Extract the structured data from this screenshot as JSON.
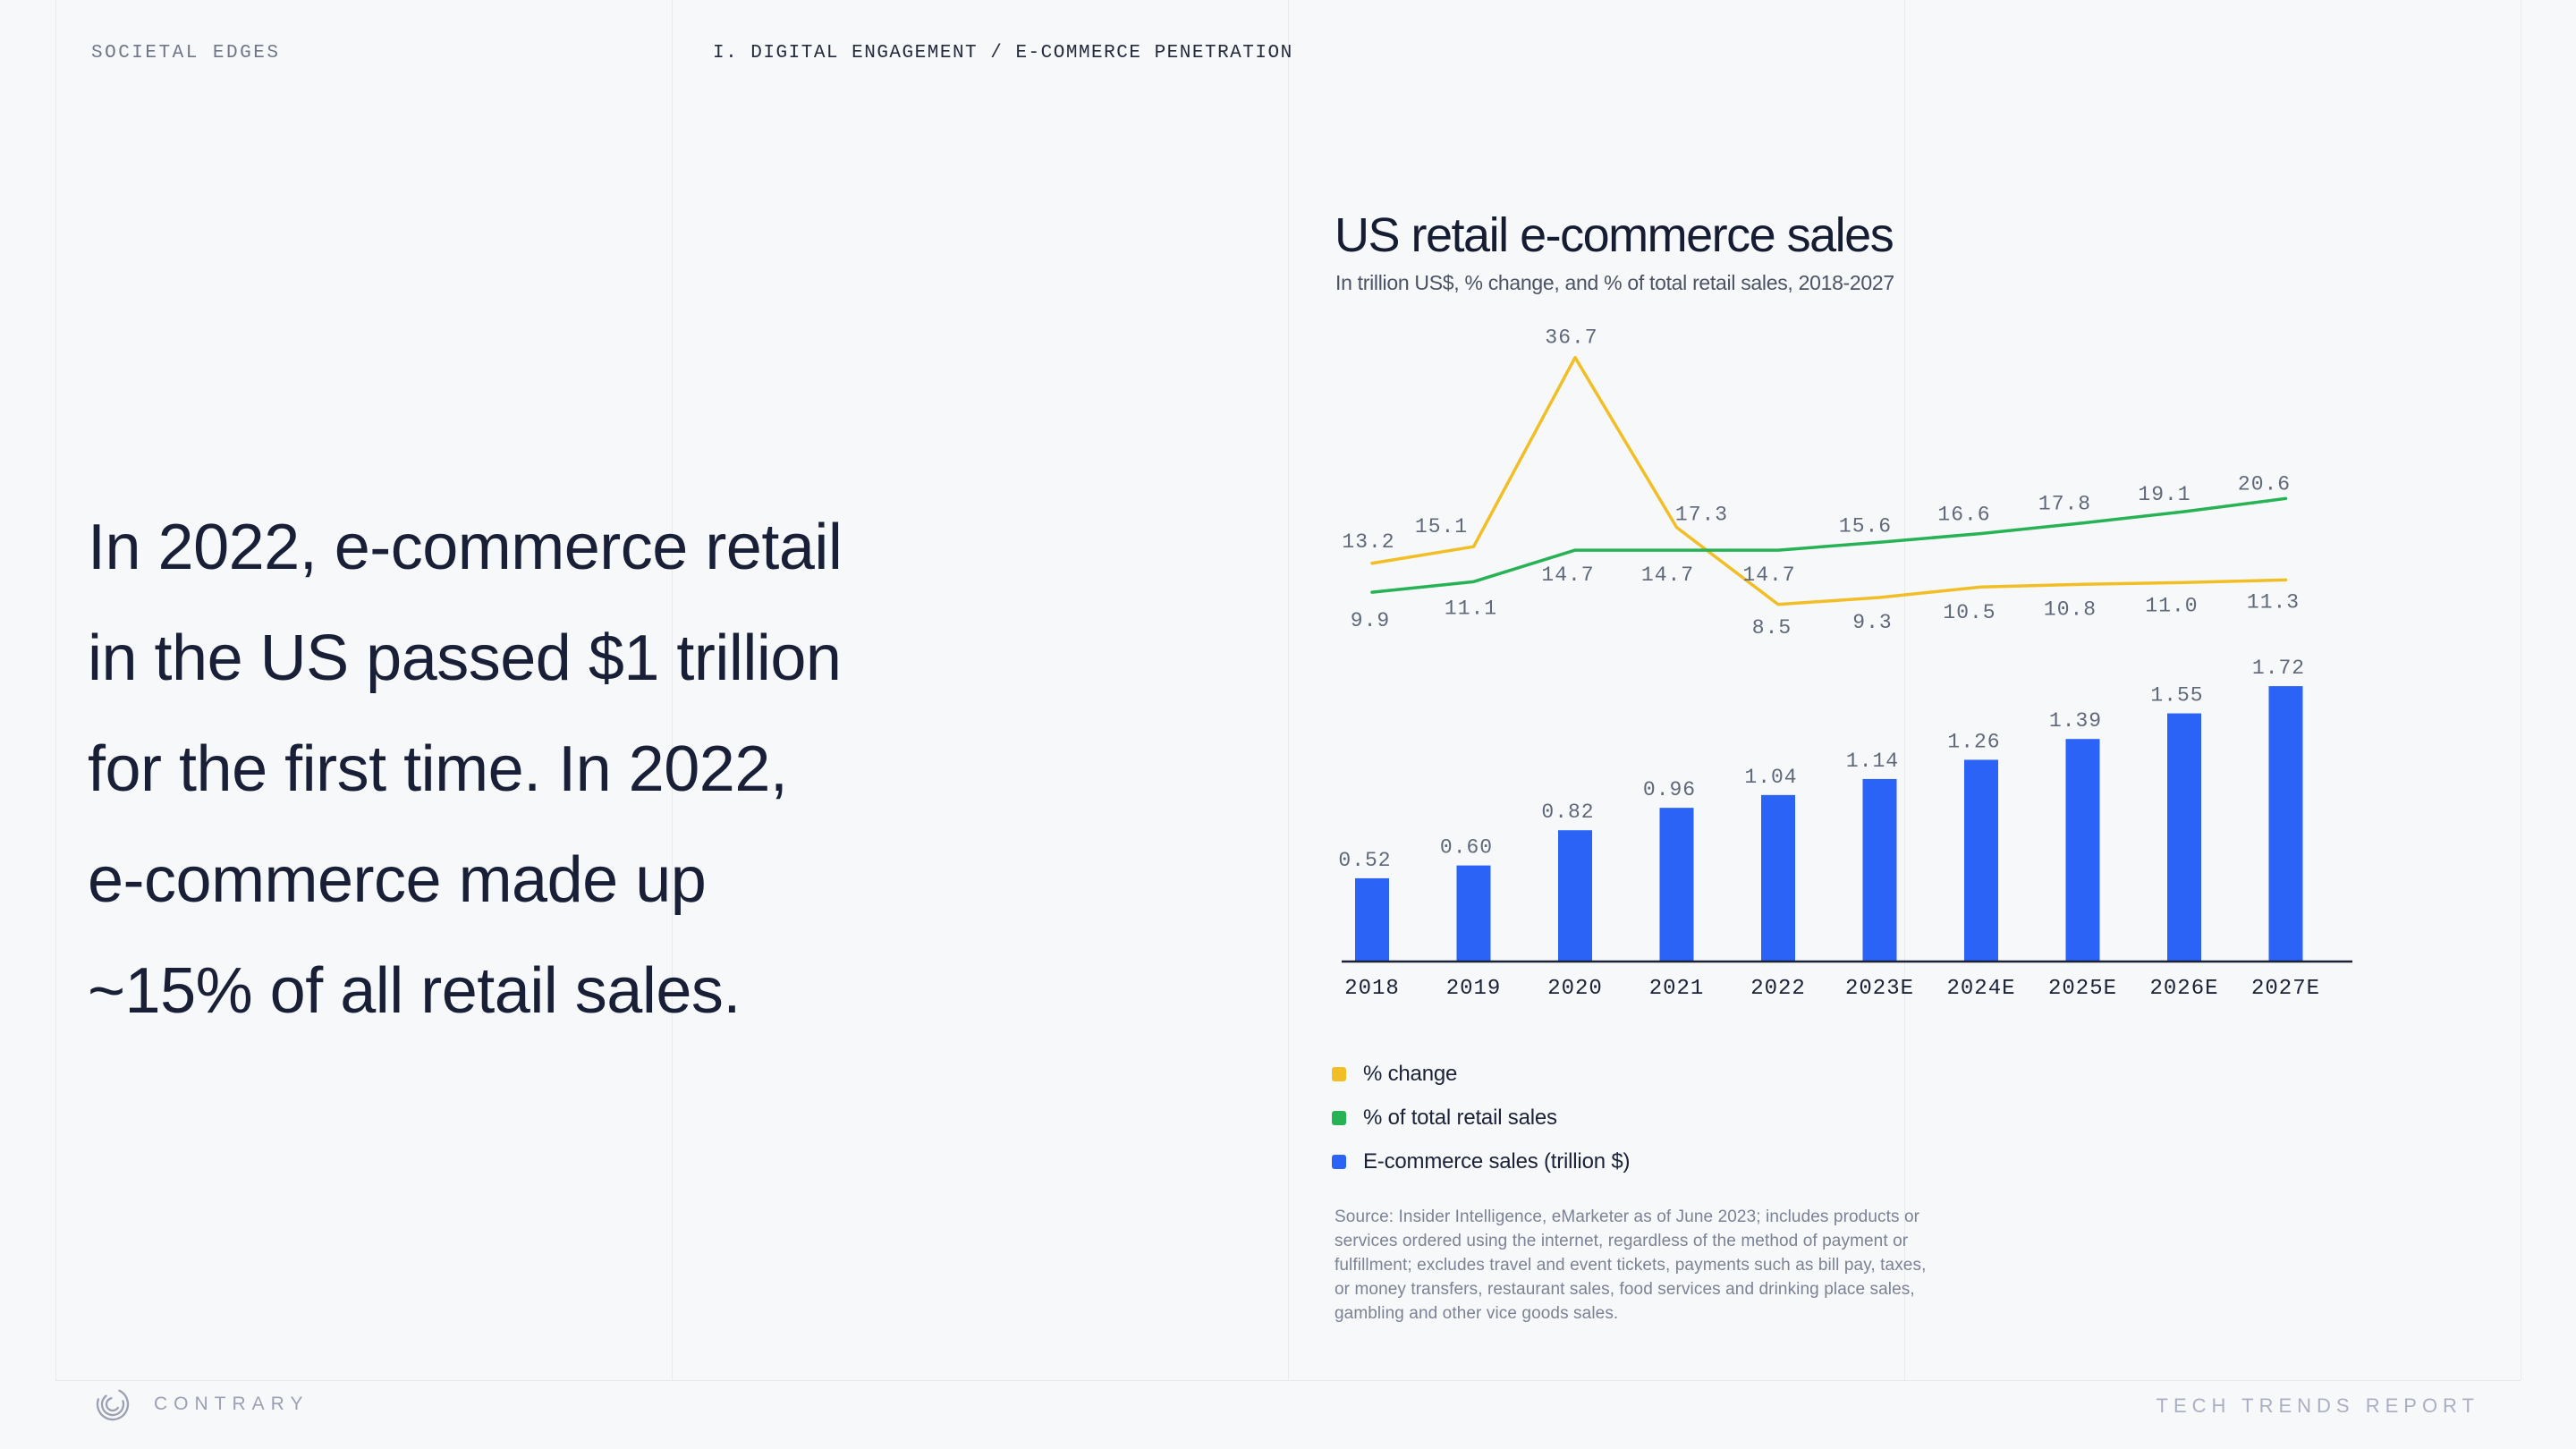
{
  "header": {
    "section_label": "SOCIETAL EDGES",
    "breadcrumb": "I. DIGITAL ENGAGEMENT / E-COMMERCE PENETRATION"
  },
  "statement": {
    "lines": [
      "In 2022, e-commerce retail",
      "in the US passed $1 trillion",
      "for the first time. In 2022,",
      "e-commerce made up",
      "~15% of all retail sales."
    ]
  },
  "chart": {
    "title": "US retail e-commerce sales",
    "subtitle": "In trillion US$, % change, and % of total retail sales, 2018-2027"
  },
  "chart_data": {
    "type": "combo",
    "title": "US retail e-commerce sales",
    "subtitle": "In trillion US$, % change, and % of total retail sales, 2018-2027",
    "categories": [
      "2018",
      "2019",
      "2020",
      "2021",
      "2022",
      "2023E",
      "2024E",
      "2025E",
      "2026E",
      "2027E"
    ],
    "series": [
      {
        "name": "% change",
        "type": "line",
        "color": "#F2BE25",
        "values": [
          13.2,
          15.1,
          36.7,
          17.3,
          8.5,
          9.3,
          10.5,
          10.8,
          11.0,
          11.3
        ],
        "decimals": 1
      },
      {
        "name": "% of total retail sales",
        "type": "line",
        "color": "#27B355",
        "values": [
          9.9,
          11.1,
          14.7,
          14.7,
          14.7,
          15.6,
          16.6,
          17.8,
          19.1,
          20.6
        ],
        "decimals": 1
      },
      {
        "name": "E-commerce sales (trillion $)",
        "type": "bar",
        "color": "#2A63F5",
        "values": [
          0.52,
          0.6,
          0.82,
          0.96,
          1.04,
          1.14,
          1.26,
          1.39,
          1.55,
          1.72
        ],
        "decimals": 2
      }
    ],
    "value_labels": true,
    "grid": false,
    "legend_position": "bottom-left"
  },
  "source": {
    "lines": [
      "Source: Insider Intelligence, eMarketer as of June 2023; includes products or",
      "services ordered using the internet, regardless of the method of payment or",
      "fulfillment; excludes travel and event tickets, payments such as bill pay, taxes,",
      "or money transfers, restaurant sales, food services and drinking place sales,",
      "gambling and other vice goods sales."
    ]
  },
  "footer": {
    "brand": "CONTRARY",
    "report_label": "TECH TRENDS REPORT"
  },
  "colors": {
    "background": "#F7F8F9",
    "ink": "#1B2136",
    "value_label": "#5F6879",
    "section_label": "#6F7689",
    "source_text": "#7B8294",
    "footer_text": "#9BA0B2",
    "report_text": "#ABAFC4",
    "divider": "#E8EAEE",
    "bar_blue": "#2A63F5",
    "line_yellow": "#F2BE25",
    "line_green": "#27B355"
  }
}
